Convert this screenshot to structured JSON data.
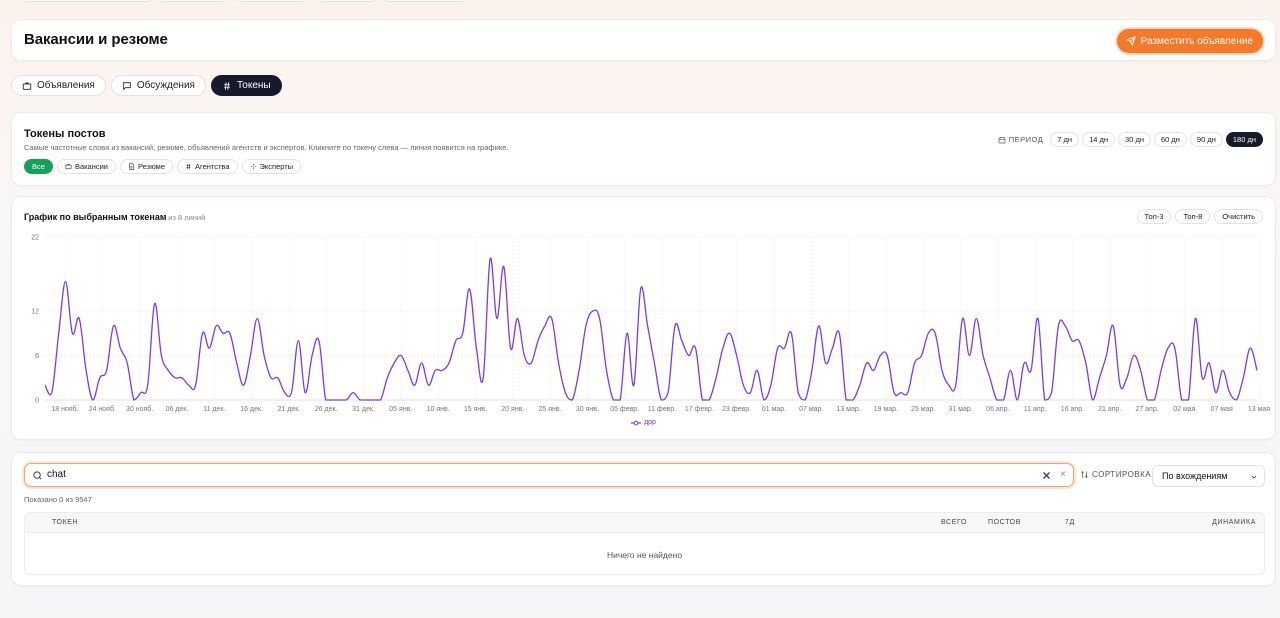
{
  "header": {
    "title": "Вакансии и резюме",
    "post_button": "Разместить объявление"
  },
  "tabs": [
    {
      "label": "Объявления",
      "icon": "briefcase-icon",
      "active": false
    },
    {
      "label": "Обсуждения",
      "icon": "message-icon",
      "active": false
    },
    {
      "label": "Токены",
      "icon": "hash-icon",
      "active": true
    }
  ],
  "tokens": {
    "title": "Токены постов",
    "subtitle": "Самые частотные слова из вакансий, резюме, объявлений агентств и экспертов. Кликните по токену слева — линия появится на графике.",
    "filters": [
      {
        "label": "Все",
        "icon": "",
        "active": true
      },
      {
        "label": "Вакансии",
        "icon": "briefcase-icon",
        "active": false
      },
      {
        "label": "Резюме",
        "icon": "document-icon",
        "active": false
      },
      {
        "label": "Агентства",
        "icon": "hash-icon",
        "active": false
      },
      {
        "label": "Эксперты",
        "icon": "sparkle-icon",
        "active": false
      }
    ],
    "period_label": "ПЕРИОД",
    "periods": [
      {
        "label": "7 дн",
        "active": false
      },
      {
        "label": "14 дн",
        "active": false
      },
      {
        "label": "30 дн",
        "active": false
      },
      {
        "label": "60 дн",
        "active": false
      },
      {
        "label": "90 дн",
        "active": false
      },
      {
        "label": "180 дн",
        "active": true
      }
    ]
  },
  "chart_card": {
    "title": "График по выбранным токенам",
    "count": "1 из 8 линий",
    "buttons": [
      "Топ-3",
      "Топ-8",
      "Очистить"
    ]
  },
  "chart_data": {
    "type": "line",
    "y_ticks": [
      0,
      6,
      12,
      22
    ],
    "ylim": [
      0,
      22
    ],
    "x_tick_labels": [
      "18 нояб.",
      "24 нояб.",
      "30 нояб.",
      "06 дек.",
      "11 дек.",
      "16 дек.",
      "21 дек.",
      "26 дек.",
      "31 дек.",
      "05 янв.",
      "10 янв.",
      "15 янв.",
      "20 янв.",
      "25 янв.",
      "30 янв.",
      "05 февр.",
      "11 февр.",
      "17 февр.",
      "23 февр.",
      "01 мар.",
      "07 мар.",
      "13 мар.",
      "19 мар.",
      "25 мар.",
      "31 мар.",
      "06 апр.",
      "11 апр.",
      "16 апр.",
      "21 апр.",
      "27 апр.",
      "02 мая",
      "07 мая",
      "13 мая"
    ],
    "series": [
      {
        "name": "дрр",
        "color": "#7c3aed",
        "values": [
          2,
          1,
          9,
          16,
          9,
          11,
          4,
          0,
          3,
          4,
          10,
          7,
          5,
          0,
          1,
          2,
          13,
          6,
          4,
          3,
          3,
          2,
          2,
          9,
          7,
          10,
          9,
          9,
          5,
          2,
          6,
          11,
          6,
          3,
          3,
          1,
          1,
          8,
          1,
          6,
          8,
          0,
          0,
          0,
          0,
          1,
          0,
          0,
          0,
          0,
          3,
          5,
          6,
          4,
          2,
          5,
          2,
          4,
          4,
          5,
          8,
          9,
          15,
          7,
          3,
          19,
          11,
          18,
          7,
          11,
          6,
          5,
          8,
          10,
          11,
          5,
          1,
          0,
          4,
          10,
          12,
          11,
          4,
          0,
          0,
          9,
          2,
          15,
          10,
          5,
          0,
          1,
          10,
          8,
          6,
          7,
          0,
          0,
          3,
          7,
          9,
          6,
          2,
          1,
          4,
          0,
          2,
          7,
          7,
          9,
          1,
          0,
          4,
          10,
          5,
          7,
          9,
          0,
          0,
          2,
          5,
          4,
          6,
          6,
          1,
          1,
          1,
          5,
          6,
          9,
          9,
          4,
          2,
          2,
          11,
          6,
          11,
          6,
          3,
          0,
          0,
          4,
          0,
          5,
          4,
          11,
          0,
          1,
          10,
          10,
          8,
          8,
          5,
          0,
          3,
          6,
          10,
          2,
          3,
          6,
          4,
          0,
          0,
          4,
          7,
          7,
          0,
          0,
          11,
          3,
          5,
          1,
          4,
          1,
          0,
          3,
          7,
          4
        ]
      }
    ]
  },
  "search": {
    "value": "chat",
    "sort_label": "СОРТИРОВКА",
    "sort_value": "По вхождениям",
    "shown": "Показано 0 из 9547",
    "columns": [
      "ТОКЕН",
      "ВСЕГО",
      "ПОСТОВ",
      "7Д",
      "ДИНАМИКА"
    ],
    "empty": "Ничего не найдено"
  }
}
